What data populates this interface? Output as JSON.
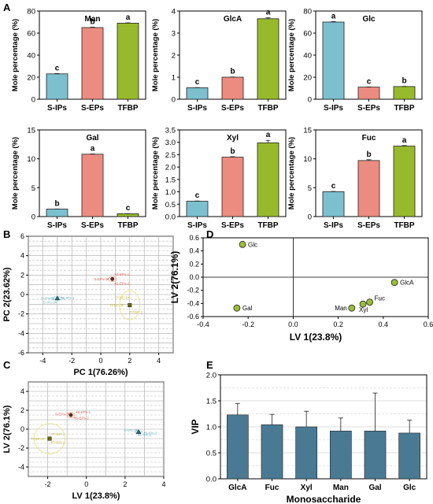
{
  "colors": {
    "s_ips": "#7cc0cf",
    "s_eps": "#ec8c80",
    "tfbp": "#97ba2c",
    "vip_bar": "#4a7a93",
    "loading_point": "#9cbd37",
    "group_s_ips": "#6fb6c4",
    "group_s_eps": "#e0655f",
    "group_tfbp": "#c8c24a",
    "ellipse_s_eps": "#f2b48e",
    "ellipse_tfbp": "#e6e48a",
    "ellipse_s_ips": "#9fd4dc",
    "grid_solid": "#a6a6a6",
    "grid_dashed": "#bbbbbb",
    "axis": "#000000"
  },
  "panel_labels": [
    "A",
    "B",
    "C",
    "D",
    "E"
  ],
  "chart_data": [
    {
      "type": "bar",
      "panel": "A",
      "title": "Man",
      "categories": [
        "S-IPs",
        "S-EPs",
        "TFBP"
      ],
      "values": [
        23,
        65,
        69
      ],
      "errors": [
        0.3,
        0.4,
        0.3
      ],
      "letters": [
        "c",
        "b",
        "a"
      ],
      "ylabel": "Mole percentage  (%)",
      "ylim": [
        0,
        80
      ],
      "yticks": [
        "0",
        "20",
        "40",
        "60",
        "80"
      ]
    },
    {
      "type": "bar",
      "panel": "A",
      "title": "GlcA",
      "categories": [
        "S-IPs",
        "S-EPs",
        "TFBP"
      ],
      "values": [
        0.52,
        1.0,
        3.65
      ],
      "errors": [
        0.01,
        0.01,
        0.05
      ],
      "letters": [
        "c",
        "b",
        "a"
      ],
      "ylabel": "Mole percentage  (%)",
      "ylim": [
        0,
        4
      ],
      "yticks": [
        "0",
        "1",
        "2",
        "3",
        "4"
      ]
    },
    {
      "type": "bar",
      "panel": "A",
      "title": "Glc",
      "categories": [
        "S-IPs",
        "S-EPs",
        "TFBP"
      ],
      "values": [
        70,
        11,
        11.5
      ],
      "errors": [
        0.5,
        0.2,
        0.2
      ],
      "letters": [
        "a",
        "c",
        "b"
      ],
      "ylabel": "Mole percentage  (%)",
      "ylim": [
        0,
        80
      ],
      "yticks": [
        "0",
        "20",
        "40",
        "60",
        "80"
      ]
    },
    {
      "type": "bar",
      "panel": "A",
      "title": "Gal",
      "categories": [
        "S-IPs",
        "S-EPs",
        "TFBP"
      ],
      "values": [
        1.3,
        10.8,
        0.5
      ],
      "errors": [
        0.02,
        0.05,
        0.02
      ],
      "letters": [
        "b",
        "a",
        "c"
      ],
      "ylabel": "Mole percentage  (%)",
      "ylim": [
        0,
        15
      ],
      "yticks": [
        "0",
        "5",
        "10",
        "15"
      ]
    },
    {
      "type": "bar",
      "panel": "A",
      "title": "Xyl",
      "categories": [
        "S-IPs",
        "S-EPs",
        "TFBP"
      ],
      "values": [
        0.62,
        2.4,
        2.98
      ],
      "errors": [
        0.01,
        0.02,
        0.1
      ],
      "letters": [
        "c",
        "b",
        "a"
      ],
      "ylabel": "Mole percentage  (%)",
      "ylim": [
        0,
        3.5
      ],
      "yticks": [
        "0.0",
        "0.5",
        "1.0",
        "1.5",
        "2.0",
        "2.5",
        "3.0",
        "3.5"
      ]
    },
    {
      "type": "bar",
      "panel": "A",
      "title": "Fuc",
      "categories": [
        "S-IPs",
        "S-EPs",
        "TFBP"
      ],
      "values": [
        4.3,
        9.7,
        12.2
      ],
      "errors": [
        0.05,
        0.15,
        0.1
      ],
      "letters": [
        "c",
        "b",
        "a"
      ],
      "ylabel": "Mole percentage  (%)",
      "ylim": [
        0,
        15
      ],
      "yticks": [
        "0",
        "5",
        "10",
        "15"
      ]
    },
    {
      "type": "scatter",
      "panel": "B",
      "xlabel": "PC 1(76.26%)",
      "ylabel": "PC 2(23.62%)",
      "xlim": [
        -5,
        5
      ],
      "ylim": [
        -6,
        6
      ],
      "xticks": [
        "-4",
        "-2",
        "0",
        "2",
        "4"
      ],
      "yticks": [
        "-6",
        "-4",
        "-2",
        "0",
        "2",
        "4",
        "6"
      ],
      "groups": [
        {
          "name": "S-IPs",
          "color_key": "group_s_ips",
          "ellipse_key": "ellipse_s_ips",
          "center": [
            -3.0,
            -0.4
          ],
          "ellipse_r": [
            0.9,
            0.35
          ],
          "points": [
            [
              "S-IPs-1",
              -2.7,
              -0.35
            ],
            [
              "S-IPs-3",
              -3.25,
              -0.4
            ],
            [
              "S-IPs-2",
              -3.1,
              -0.8
            ]
          ]
        },
        {
          "name": "S-EPs",
          "color_key": "group_s_eps",
          "ellipse_key": "ellipse_s_eps",
          "center": [
            0.8,
            1.6
          ],
          "ellipse_r": [
            0.55,
            0.5
          ],
          "points": [
            [
              "S-EPs-1",
              1.0,
              2.1
            ],
            [
              "S-EPs-3",
              0.5,
              1.6
            ],
            [
              "S-EPs-2",
              1.0,
              1.15
            ]
          ]
        },
        {
          "name": "TFBP",
          "color_key": "group_tfbp",
          "ellipse_key": "ellipse_tfbp",
          "center": [
            2.0,
            -1.1
          ],
          "ellipse_r": [
            1.4,
            3.0
          ],
          "points": [
            [
              "TFBP-1",
              1.9,
              -0.3
            ],
            [
              "TFBP-3",
              1.5,
              -1.1
            ],
            [
              "TFBP-2",
              2.0,
              -1.8
            ]
          ]
        }
      ]
    },
    {
      "type": "scatter",
      "panel": "C",
      "xlabel": "LV 1(23.8%)",
      "ylabel": "LV 2(76.1%)",
      "xlim": [
        -3,
        4
      ],
      "ylim": [
        -5,
        5
      ],
      "xticks": [
        "-2",
        "0",
        "2",
        "4"
      ],
      "yticks": [
        "-4",
        "-2",
        "0",
        "2",
        "4"
      ],
      "groups": [
        {
          "name": "S-EPs",
          "color_key": "group_s_eps",
          "ellipse_key": "ellipse_s_eps",
          "center": [
            -0.8,
            1.5
          ],
          "ellipse_r": [
            0.4,
            0.6
          ],
          "points": [
            [
              "S-EPs-3",
              -0.9,
              1.6
            ],
            [
              "S-EPs-1",
              -0.5,
              1.8
            ],
            [
              "S-EPs-2",
              -0.6,
              1.2
            ]
          ]
        },
        {
          "name": "TFBP",
          "color_key": "group_tfbp",
          "ellipse_key": "ellipse_tfbp",
          "center": [
            -1.9,
            -1.0
          ],
          "ellipse_r": [
            1.6,
            3.2
          ],
          "points": [
            [
              "TFBP-1",
              -1.8,
              -0.5
            ],
            [
              "TFBP-3",
              -2.2,
              -1.0
            ],
            [
              "TFBP-2",
              -1.8,
              -1.4
            ]
          ]
        },
        {
          "name": "S-IPs",
          "color_key": "group_s_ips",
          "ellipse_key": "ellipse_s_ips",
          "center": [
            2.7,
            -0.3
          ],
          "ellipse_r": [
            0.35,
            0.3
          ],
          "points": [
            [
              "S-IPs-3",
              2.6,
              -0.1
            ],
            [
              "S-IPs-1",
              3.0,
              -0.4
            ],
            [
              "S-IPs-2",
              2.7,
              -0.6
            ]
          ]
        }
      ]
    },
    {
      "type": "scatter",
      "panel": "D",
      "xlabel": "LV 1(23.8%)",
      "ylabel": "LV 2(76.1%)",
      "xlim": [
        -0.4,
        0.6
      ],
      "ylim": [
        -0.6,
        0.6
      ],
      "xticks": [
        "-0.4",
        "-0.2",
        "0.0",
        "0.2",
        "0.4",
        "0.6"
      ],
      "yticks": [
        "-0.6",
        "-0.4",
        "-0.2",
        "0.0",
        "0.2",
        "0.4",
        "0.6"
      ],
      "points": [
        {
          "label": "Glc",
          "x": -0.225,
          "y": 0.5
        },
        {
          "label": "GlcA",
          "x": 0.45,
          "y": -0.08
        },
        {
          "label": "Fuc",
          "x": 0.34,
          "y": -0.38
        },
        {
          "label": "Xyl",
          "x": 0.31,
          "y": -0.41
        },
        {
          "label": "Man",
          "x": 0.26,
          "y": -0.47
        },
        {
          "label": "Gal",
          "x": -0.25,
          "y": -0.47
        }
      ]
    },
    {
      "type": "bar",
      "panel": "E",
      "categories": [
        "GlcA",
        "Fuc",
        "Xyl",
        "Man",
        "Gal",
        "Glc"
      ],
      "values": [
        1.23,
        1.04,
        1.0,
        0.92,
        0.92,
        0.88
      ],
      "errors": [
        0.22,
        0.2,
        0.3,
        0.25,
        0.73,
        0.25
      ],
      "xlabel": "Monosaccharide",
      "ylabel": "VIP",
      "ylim": [
        0,
        2.0
      ],
      "yticks": [
        "0.0",
        "0.5",
        "1.0",
        "1.5",
        "2.0"
      ]
    }
  ]
}
